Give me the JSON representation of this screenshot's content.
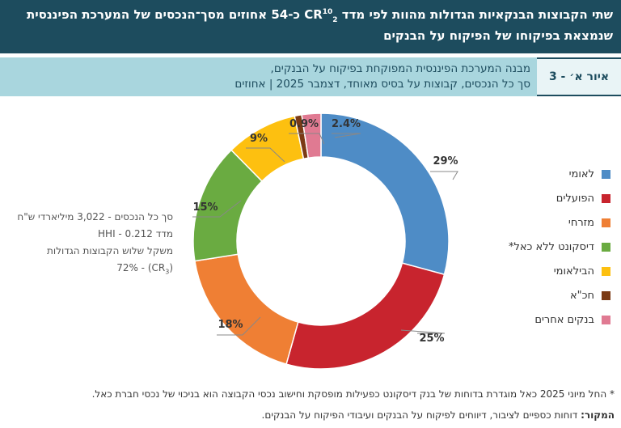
{
  "header": {
    "line1_a": "שתי הקבוצות הבנקאיות הגדולות מהוות לפי מדד CR",
    "line1_sub": "2",
    "line1_sup": "10",
    "line1_b": " כ-54 אחוזים מסך־הנכסים של המערכת הפיננסית",
    "line2": "שנמצאת בפיקוחו של הפיקוח על הבנקים"
  },
  "figure": {
    "label": "איור א׳ - 3",
    "title_line1": "מבנה המערכת הפיננסית המפוקחת בפיקוח על הבנקים,",
    "title_line2": "סך כל הנכסים, קבוצות על בסיס מאוחד, דצמבר 2025 | אחוזים"
  },
  "stats": {
    "line1": "סך כל הנכסים - 3,022 מיליארדי ש\"ח",
    "line2": "מדד HHI - 0.212",
    "line3": "משקל שלוש הקבוצות הגדולות",
    "line4_a": "(CR",
    "line4_sub": "3",
    "line4_b": ") - 72%"
  },
  "chart_data": {
    "type": "pie",
    "donut": true,
    "categories": [
      "לאומי",
      "הפועלים",
      "מזרחי",
      "דיסקונט ללא כאל*",
      "הבילאומי",
      "חכ\"א",
      "בנקים אחרים"
    ],
    "values": [
      29,
      25,
      18,
      15,
      9,
      0.9,
      2.4
    ],
    "data_labels": [
      "29%",
      "25%",
      "18%",
      "15%",
      "9%",
      "0.9%",
      "2.4%"
    ],
    "colors": [
      "#4e8cc6",
      "#c8242e",
      "#ef7f34",
      "#6aab41",
      "#fdc010",
      "#7b3a15",
      "#e07a92"
    ],
    "legend_placement": "right"
  },
  "footnote": "* החל מיוני 2025 כאל מוגדרת בדוחות של בנק דיסקונט כפעילות מופסקת וחישוב נכסי הקבוצה הוא בניכוי של נכסי  חברת כאל.",
  "source": {
    "label": "המקור:",
    "text": " דוחות כספיים לציבור, דיווחים לפיקוח על הבנקים ועיבודי הפיקוח על הבנקים."
  }
}
